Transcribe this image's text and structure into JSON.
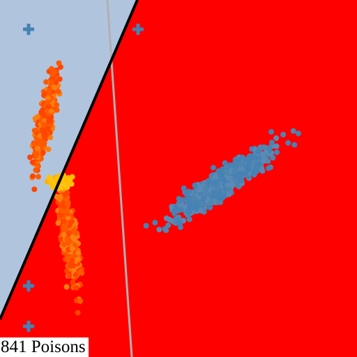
{
  "status": {
    "poison_count": "841 Poisons"
  },
  "colors": {
    "background_region": "#ff0000",
    "safe_region": "#b0c4de",
    "decision_boundary": "#000000",
    "secondary_boundary": "#b0b0b0",
    "cluster_blue": "#4682b4",
    "cluster_orange": "#ff4500",
    "cluster_light_orange": "#ff7f0e",
    "cluster_yellow": "#ffbf00",
    "marker_plus": "#4682b4"
  },
  "markers": [
    {
      "name": "plus-marker-top-left",
      "icon": "plus-icon"
    },
    {
      "name": "plus-marker-top-center",
      "icon": "plus-icon"
    },
    {
      "name": "plus-marker-bottom-left-upper",
      "icon": "plus-icon"
    },
    {
      "name": "plus-marker-bottom-left-lower",
      "icon": "plus-icon"
    }
  ]
}
